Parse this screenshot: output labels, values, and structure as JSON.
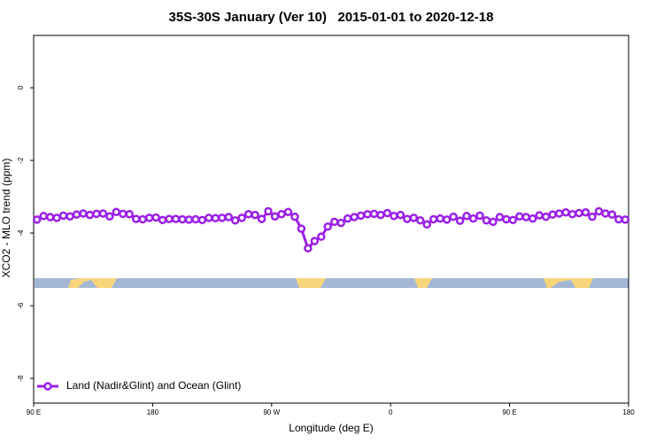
{
  "chart_data": {
    "type": "line",
    "title": "35S-30S January (Ver 10)   2015-01-01 to 2020-12-18",
    "x_label": "Longitude (deg E)",
    "y_label": "XCO2 - MLO trend (ppm)",
    "xlim": [
      90,
      540
    ],
    "ylim": [
      -8.68,
      1.44
    ],
    "xticks": [
      {
        "value": 90,
        "label": "90 E"
      },
      {
        "value": 180,
        "label": "180"
      },
      {
        "value": 270,
        "label": "90 W"
      },
      {
        "value": 360,
        "label": "0"
      },
      {
        "value": 450,
        "label": "90 E"
      },
      {
        "value": 540,
        "label": "180"
      }
    ],
    "yticks": [
      0,
      -2,
      -4,
      -6,
      -8
    ],
    "legend_position": "bottom-left",
    "x": [
      92.5,
      97.5,
      102.5,
      107.5,
      112.5,
      117.5,
      122.5,
      127.5,
      132.5,
      137.5,
      142.5,
      147.5,
      152.5,
      157.5,
      162.5,
      167.5,
      172.5,
      177.5,
      182.5,
      187.5,
      192.5,
      197.5,
      202.5,
      207.5,
      212.5,
      217.5,
      222.5,
      227.5,
      232.5,
      237.5,
      242.5,
      247.5,
      252.5,
      257.5,
      262.5,
      267.5,
      272.5,
      277.5,
      282.5,
      287.5,
      292.5,
      297.5,
      302.5,
      307.5,
      312.5,
      317.5,
      322.5,
      327.5,
      332.5,
      337.5,
      342.5,
      347.5,
      352.5,
      357.5,
      362.5,
      367.5,
      372.5,
      377.5,
      382.5,
      387.5,
      392.5,
      397.5,
      402.5,
      407.5,
      412.5,
      417.5,
      422.5,
      427.5,
      432.5,
      437.5,
      442.5,
      447.5,
      452.5,
      457.5,
      462.5,
      467.5,
      472.5,
      477.5,
      482.5,
      487.5,
      492.5,
      497.5,
      502.5,
      507.5,
      512.5,
      517.5,
      522.5,
      527.5,
      532.5,
      537.5
    ],
    "series": [
      {
        "name": "Land (Nadir&Glint) and Ocean (Glint)",
        "color": "#9b1fe8",
        "values": [
          -3.63,
          -3.53,
          -3.56,
          -3.58,
          -3.52,
          -3.54,
          -3.49,
          -3.46,
          -3.5,
          -3.47,
          -3.46,
          -3.54,
          -3.42,
          -3.47,
          -3.48,
          -3.61,
          -3.62,
          -3.58,
          -3.57,
          -3.64,
          -3.61,
          -3.61,
          -3.62,
          -3.63,
          -3.62,
          -3.64,
          -3.58,
          -3.59,
          -3.58,
          -3.56,
          -3.65,
          -3.58,
          -3.48,
          -3.5,
          -3.61,
          -3.4,
          -3.54,
          -3.48,
          -3.42,
          -3.55,
          -3.88,
          -4.42,
          -4.22,
          -4.1,
          -3.82,
          -3.69,
          -3.72,
          -3.6,
          -3.56,
          -3.52,
          -3.48,
          -3.47,
          -3.5,
          -3.45,
          -3.53,
          -3.5,
          -3.61,
          -3.58,
          -3.65,
          -3.76,
          -3.62,
          -3.6,
          -3.63,
          -3.55,
          -3.66,
          -3.53,
          -3.6,
          -3.52,
          -3.65,
          -3.69,
          -3.56,
          -3.62,
          -3.64,
          -3.54,
          -3.56,
          -3.6,
          -3.51,
          -3.55,
          -3.49,
          -3.46,
          -3.43,
          -3.48,
          -3.45,
          -3.43,
          -3.55,
          -3.4,
          -3.46,
          -3.49,
          -3.62,
          -3.63
        ]
      }
    ]
  }
}
